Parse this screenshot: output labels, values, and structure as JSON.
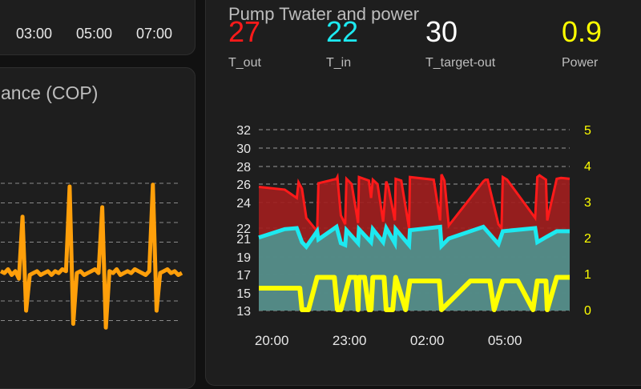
{
  "top_left_card": {
    "x_ticks": [
      "03:00",
      "05:00",
      "07:00"
    ]
  },
  "cop_card": {
    "title": "ance (COP)"
  },
  "pump_card": {
    "title": "Pump Twater and power",
    "stats": [
      {
        "value": "27",
        "label": "T_out",
        "color": "#ff1a1a"
      },
      {
        "value": "22",
        "label": "T_in",
        "color": "#1de9f0"
      },
      {
        "value": "30",
        "label": "T_target-out",
        "color": "#ffffff"
      },
      {
        "value": "0.9",
        "label": "Power",
        "color": "#ffff00"
      }
    ]
  },
  "chart_data": [
    {
      "type": "line",
      "series": [
        {
          "color": "#ff9f0a",
          "x": [
            0,
            0.02,
            0.04,
            0.06,
            0.08,
            0.1,
            0.12,
            0.14,
            0.16,
            0.18,
            0.2,
            0.22,
            0.24,
            0.26,
            0.28,
            0.3,
            0.32,
            0.34,
            0.36,
            0.38,
            0.4,
            0.42,
            0.44,
            0.46,
            0.48,
            0.5,
            0.52,
            0.54,
            0.56,
            0.58,
            0.6,
            0.62,
            0.64,
            0.66,
            0.68,
            0.7,
            0.72,
            0.74,
            0.76,
            0.78,
            0.8,
            0.82,
            0.84,
            0.86,
            0.88,
            0.9,
            0.92,
            0.94,
            0.96,
            0.98,
            1.0
          ],
          "values": [
            3.2,
            3.1,
            3.3,
            3.0,
            3.2,
            2.8,
            6.1,
            1.1,
            3.0,
            3.1,
            3.2,
            3.0,
            3.1,
            3.2,
            3.0,
            3.2,
            3.1,
            3.3,
            3.2,
            7.7,
            0.4,
            3.1,
            3.2,
            3.0,
            3.1,
            3.2,
            3.3,
            3.1,
            6.6,
            0.2,
            3.2,
            3.1,
            3.3,
            3.0,
            3.1,
            3.2,
            3.1,
            3.3,
            3.2,
            3.1,
            3.0,
            3.2,
            7.8,
            1.1,
            3.1,
            3.2,
            3.3,
            3.1,
            3.2,
            3.0,
            3.1
          ]
        }
      ]
    },
    {
      "type": "area",
      "x_ticks": [
        "20:00",
        "23:00",
        "02:00",
        "05:00"
      ],
      "x_range": [
        "19:30",
        "07:30"
      ],
      "y_left": {
        "ticks": [
          13,
          15,
          17,
          19,
          21,
          22,
          24,
          26,
          28,
          30,
          32
        ],
        "range": [
          13,
          32
        ]
      },
      "y_right": {
        "ticks": [
          0,
          1,
          2,
          3,
          4,
          5
        ],
        "range": [
          0,
          5
        ],
        "color": "#ffff00"
      },
      "grid": "dashed",
      "series": [
        {
          "name": "T_out",
          "axis": "left",
          "color": "#ff1a1a",
          "x": [
            "19:30",
            "20:30",
            "20:58",
            "21:02",
            "21:10",
            "21:20",
            "21:45",
            "21:48",
            "22:30",
            "22:32",
            "22:40",
            "22:50",
            "22:53",
            "23:05",
            "23:20",
            "23:22",
            "23:45",
            "23:50",
            "23:54",
            "00:05",
            "00:18",
            "00:25",
            "00:30",
            "00:45",
            "00:47",
            "01:00",
            "01:18",
            "01:20",
            "02:15",
            "02:30",
            "02:33",
            "02:40",
            "02:50",
            "04:10",
            "04:15",
            "04:20",
            "04:45",
            "04:52",
            "04:55",
            "05:05",
            "06:10",
            "06:15",
            "06:20",
            "06:35",
            "06:38",
            "07:00",
            "07:10",
            "07:30"
          ],
          "values": [
            25.7,
            25.4,
            24.5,
            26.2,
            25.5,
            22.8,
            21.7,
            26.1,
            26.6,
            26.8,
            23.0,
            22.3,
            26.6,
            26.0,
            22.4,
            26.8,
            26.4,
            24.5,
            26.5,
            26.0,
            22.5,
            26.3,
            25.7,
            22.6,
            26.6,
            26.4,
            22.0,
            26.8,
            26.5,
            22.6,
            27.1,
            26.4,
            22.2,
            26.3,
            26.5,
            26.5,
            22.3,
            22.0,
            26.8,
            26.5,
            22.8,
            26.8,
            27.0,
            26.5,
            22.6,
            26.6,
            26.7,
            26.6
          ]
        },
        {
          "name": "T_in",
          "axis": "left",
          "color": "#1de9f0",
          "x": [
            "19:30",
            "20:30",
            "20:58",
            "21:10",
            "21:20",
            "21:45",
            "21:48",
            "22:30",
            "22:40",
            "22:50",
            "22:53",
            "23:20",
            "23:22",
            "23:50",
            "23:54",
            "00:18",
            "00:25",
            "00:45",
            "00:47",
            "01:18",
            "01:20",
            "02:30",
            "02:33",
            "02:50",
            "04:10",
            "04:45",
            "04:55",
            "06:10",
            "06:15",
            "06:38",
            "07:00",
            "07:30"
          ],
          "values": [
            21.1,
            21.9,
            22.0,
            20.6,
            20.1,
            21.7,
            20.9,
            22.1,
            20.5,
            20.3,
            21.8,
            20.5,
            21.9,
            20.6,
            21.9,
            20.6,
            22.0,
            20.5,
            21.9,
            20.3,
            21.8,
            22.1,
            20.2,
            21.0,
            22.1,
            20.4,
            21.7,
            22.0,
            20.6,
            21.2,
            21.7,
            21.7
          ]
        },
        {
          "name": "Power",
          "axis": "right",
          "color": "#ffff00",
          "x": [
            "19:30",
            "21:05",
            "21:10",
            "21:25",
            "21:45",
            "21:48",
            "22:25",
            "22:32",
            "22:40",
            "23:00",
            "23:05",
            "23:15",
            "23:20",
            "23:22",
            "23:35",
            "23:45",
            "23:50",
            "23:54",
            "00:20",
            "00:25",
            "00:40",
            "00:47",
            "01:10",
            "01:20",
            "02:00",
            "02:28",
            "02:33",
            "03:40",
            "04:25",
            "04:35",
            "04:55",
            "05:05",
            "05:30",
            "06:05",
            "06:15",
            "06:30",
            "06:35",
            "06:38",
            "07:00",
            "07:30"
          ],
          "values": [
            0.6,
            0.6,
            0.0,
            0.0,
            0.9,
            0.9,
            0.9,
            0.0,
            0.0,
            0.9,
            0.9,
            0.9,
            0.0,
            0.9,
            0.9,
            0.0,
            0.0,
            0.9,
            0.9,
            0.0,
            0.0,
            0.9,
            0.0,
            0.8,
            0.8,
            0.8,
            0.0,
            0.8,
            0.8,
            0.0,
            0.8,
            0.8,
            0.8,
            0.0,
            0.8,
            0.8,
            0.8,
            0.0,
            0.9,
            0.9
          ]
        }
      ]
    }
  ]
}
